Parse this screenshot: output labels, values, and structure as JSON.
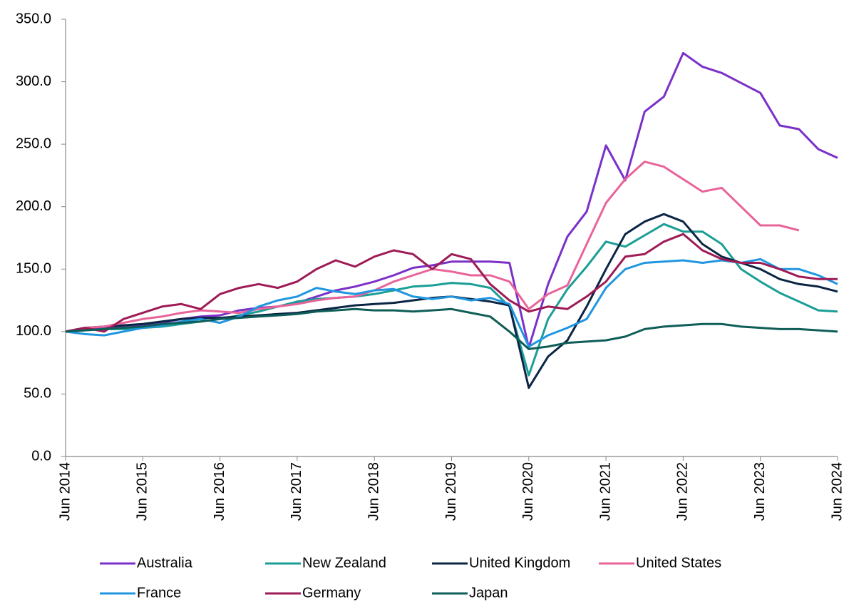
{
  "chart_data": {
    "type": "line",
    "categories": [
      "Jun 2014",
      null,
      null,
      null,
      "Jun 2015",
      null,
      null,
      null,
      "Jun 2016",
      null,
      null,
      null,
      "Jun 2017",
      null,
      null,
      null,
      "Jun 2018",
      null,
      null,
      null,
      "Jun 2019",
      null,
      null,
      null,
      "Jun 2020",
      null,
      null,
      null,
      "Jun 2021",
      null,
      null,
      null,
      "Jun 2022",
      null,
      null,
      null,
      "Jun 2023",
      null,
      null,
      null,
      "Jun 2024"
    ],
    "ylim": [
      0,
      350
    ],
    "yticks": [
      {
        "value": 0,
        "label": "0.0"
      },
      {
        "value": 50,
        "label": "50.0"
      },
      {
        "value": 100,
        "label": "100.0"
      },
      {
        "value": 150,
        "label": "150.0"
      },
      {
        "value": 200,
        "label": "200.0"
      },
      {
        "value": 250,
        "label": "250.0"
      },
      {
        "value": 300,
        "label": "300.0"
      },
      {
        "value": 350,
        "label": "350.0"
      }
    ],
    "grid": false,
    "legend": "bottom",
    "series": [
      {
        "name": "Australia",
        "color": "#7b30c8",
        "values": [
          100,
          102,
          103,
          104,
          105,
          107,
          110,
          112,
          113,
          117,
          119,
          120,
          123,
          128,
          133,
          136,
          140,
          145,
          151,
          153,
          156,
          156,
          156,
          155,
          87,
          138,
          176,
          196,
          249,
          221,
          276,
          288,
          323,
          312,
          307,
          299,
          291,
          265,
          262,
          246,
          239
        ]
      },
      {
        "name": "New Zealand",
        "color": "#1a9e96",
        "values": [
          100,
          101,
          102,
          102,
          103,
          104,
          106,
          108,
          110,
          113,
          116,
          120,
          124,
          126,
          127,
          128,
          130,
          133,
          136,
          137,
          139,
          138,
          135,
          120,
          65,
          110,
          134,
          152,
          172,
          168,
          177,
          186,
          180,
          180,
          170,
          150,
          140,
          131,
          124,
          117,
          116
        ]
      },
      {
        "name": "United Kingdom",
        "color": "#0b2545",
        "values": [
          100,
          103,
          104,
          105,
          106,
          108,
          110,
          111,
          111,
          112,
          113,
          114,
          115,
          117,
          119,
          121,
          122,
          123,
          125,
          127,
          128,
          126,
          124,
          121,
          55,
          80,
          93,
          120,
          150,
          178,
          188,
          194,
          188,
          170,
          160,
          155,
          150,
          142,
          138,
          136,
          132
        ]
      },
      {
        "name": "United States",
        "color": "#e8649a",
        "values": [
          100,
          103,
          104,
          107,
          110,
          112,
          115,
          117,
          116,
          115,
          118,
          120,
          122,
          125,
          127,
          128,
          133,
          140,
          145,
          150,
          148,
          145,
          145,
          140,
          118,
          130,
          137,
          170,
          203,
          222,
          236,
          232,
          222,
          212,
          215,
          200,
          185,
          185,
          181,
          null,
          null
        ]
      },
      {
        "name": "France",
        "color": "#2196e0",
        "values": [
          100,
          98,
          97,
          100,
          103,
          105,
          108,
          110,
          107,
          112,
          120,
          125,
          128,
          135,
          132,
          130,
          133,
          134,
          128,
          126,
          128,
          125,
          127,
          122,
          88,
          97,
          103,
          110,
          135,
          150,
          155,
          156,
          157,
          155,
          157,
          155,
          158,
          150,
          150,
          145,
          138
        ]
      },
      {
        "name": "Germany",
        "color": "#9e1b55",
        "values": [
          100,
          103,
          100,
          110,
          115,
          120,
          122,
          118,
          130,
          135,
          138,
          135,
          140,
          150,
          157,
          152,
          160,
          165,
          162,
          150,
          162,
          158,
          138,
          125,
          116,
          120,
          118,
          128,
          140,
          160,
          162,
          172,
          178,
          165,
          158,
          155,
          155,
          150,
          144,
          142,
          142
        ]
      },
      {
        "name": "Japan",
        "color": "#0e5e57",
        "values": [
          100,
          101,
          102,
          103,
          104,
          106,
          107,
          108,
          110,
          111,
          112,
          113,
          114,
          116,
          117,
          118,
          117,
          117,
          116,
          117,
          118,
          115,
          112,
          100,
          86,
          88,
          91,
          92,
          93,
          96,
          102,
          104,
          105,
          106,
          106,
          104,
          103,
          102,
          102,
          101,
          100
        ]
      }
    ]
  }
}
